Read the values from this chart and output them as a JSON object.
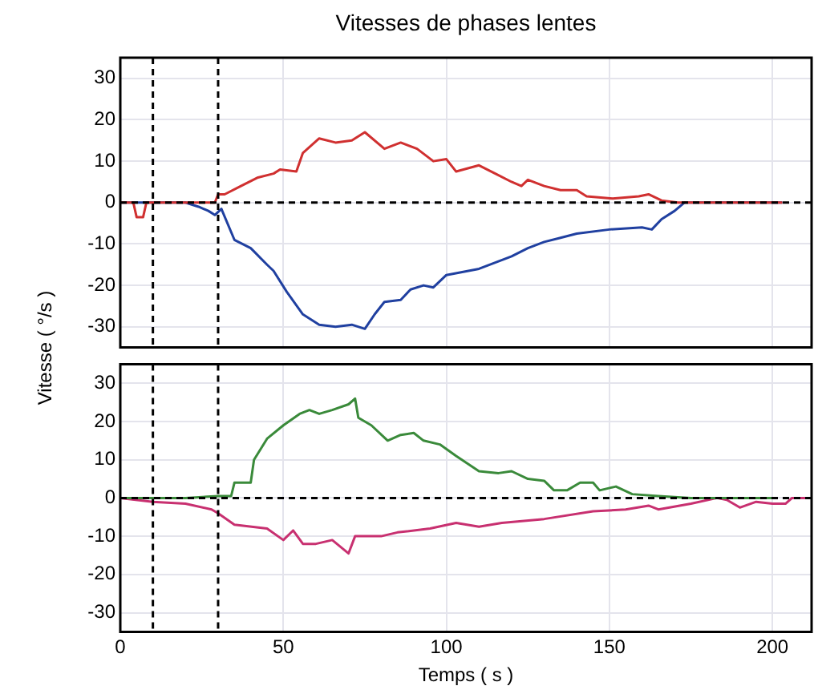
{
  "chart_data": [
    {
      "type": "line",
      "title": "Vitesses de phases lentes",
      "ylabel": "Vitesse ( °/s )",
      "xlim": [
        0,
        212
      ],
      "xticks": [
        0,
        50,
        100,
        150,
        200
      ],
      "ylim": [
        -35,
        35
      ],
      "yticks": [
        30,
        20,
        10,
        0,
        -10,
        -20,
        -30
      ],
      "grid": true,
      "legend": false,
      "marker": "none",
      "line_style": "solid",
      "tick_labels": "y",
      "ref_lines": [
        {
          "axis": "x",
          "value": 10,
          "color": "#000000",
          "line_style": "dashed"
        },
        {
          "axis": "x",
          "value": 30,
          "color": "#000000",
          "line_style": "dashed"
        },
        {
          "axis": "y",
          "value": 0,
          "color": "#000000",
          "line_style": "dashed"
        }
      ],
      "series": [
        {
          "color": "#d03030",
          "x": [
            0,
            4,
            5,
            7,
            8,
            12,
            20,
            29,
            30,
            32,
            37,
            42,
            47,
            49,
            54,
            56,
            61,
            66,
            71,
            75,
            81,
            86,
            91,
            96,
            100,
            103,
            110,
            115,
            120,
            123,
            125,
            130,
            135,
            140,
            143,
            151,
            159,
            162,
            166,
            171,
            180,
            203
          ],
          "values": [
            0,
            0,
            -3.5,
            -3.5,
            0,
            0,
            0,
            0,
            2,
            2,
            4,
            6,
            7,
            8,
            7.5,
            12,
            15.5,
            14.5,
            15,
            17,
            13,
            14.5,
            13,
            10,
            10.5,
            7.5,
            9,
            7,
            5,
            4,
            5.5,
            4,
            3,
            3,
            1.5,
            1,
            1.5,
            2,
            0.5,
            0,
            0,
            0
          ]
        },
        {
          "color": "#2040a0",
          "x": [
            0,
            10,
            20,
            24,
            27,
            29,
            31,
            35,
            40,
            45,
            47,
            51,
            56,
            61,
            66,
            71,
            75,
            78,
            81,
            86,
            89,
            93,
            96,
            100,
            110,
            120,
            125,
            130,
            135,
            140,
            150,
            160,
            163,
            166,
            170,
            173,
            190,
            203
          ],
          "values": [
            0,
            0,
            0,
            -1,
            -2,
            -3,
            -1.5,
            -9,
            -11,
            -15,
            -16.5,
            -21.5,
            -27,
            -29.5,
            -30,
            -29.5,
            -30.5,
            -27,
            -24,
            -23.5,
            -21,
            -20,
            -20.5,
            -17.5,
            -16,
            -13,
            -11,
            -9.5,
            -8.5,
            -7.5,
            -6.5,
            -6,
            -6.5,
            -4,
            -2,
            0,
            0,
            0
          ]
        }
      ]
    },
    {
      "type": "line",
      "xlabel": "Temps ( s )",
      "xlim": [
        0,
        212
      ],
      "xticks": [
        0,
        50,
        100,
        150,
        200
      ],
      "ylim": [
        -35,
        35
      ],
      "yticks": [
        30,
        20,
        10,
        0,
        -10,
        -20,
        -30
      ],
      "grid": true,
      "legend": false,
      "marker": "none",
      "line_style": "solid",
      "ref_lines": [
        {
          "axis": "x",
          "value": 10,
          "color": "#000000",
          "line_style": "dashed"
        },
        {
          "axis": "x",
          "value": 30,
          "color": "#000000",
          "line_style": "dashed"
        },
        {
          "axis": "y",
          "value": 0,
          "color": "#000000",
          "line_style": "dashed"
        }
      ],
      "series": [
        {
          "color": "#3a8a3a",
          "x": [
            0,
            20,
            30,
            34,
            35,
            40,
            41,
            45,
            50,
            55,
            58,
            61,
            65,
            70,
            72,
            73,
            77,
            82,
            86,
            90,
            93,
            98,
            103,
            110,
            116,
            120,
            125,
            130,
            133,
            137,
            141,
            145,
            147,
            152,
            157,
            165,
            175,
            200
          ],
          "values": [
            0,
            0,
            0.5,
            0.5,
            4,
            4,
            10,
            15.5,
            19,
            22,
            23,
            22,
            23,
            24.5,
            26,
            21,
            19,
            15,
            16.5,
            17,
            15,
            14,
            11,
            7,
            6.5,
            7,
            5,
            4.5,
            2,
            2,
            4,
            4,
            2,
            3,
            1,
            0.5,
            0,
            0
          ]
        },
        {
          "color": "#c83070",
          "x": [
            0,
            10,
            20,
            28,
            30,
            35,
            45,
            50,
            53,
            56,
            60,
            65,
            70,
            72,
            80,
            85,
            95,
            103,
            110,
            117,
            130,
            145,
            155,
            162,
            165,
            175,
            183,
            186,
            190,
            195,
            200,
            204,
            206,
            212
          ],
          "values": [
            0,
            -1,
            -1.5,
            -3,
            -4,
            -7,
            -8,
            -11,
            -8.5,
            -12,
            -12,
            -11,
            -14.5,
            -10,
            -10,
            -9,
            -8,
            -6.5,
            -7.5,
            -6.5,
            -5.5,
            -3.5,
            -3,
            -2,
            -3,
            -1.5,
            0,
            -0.5,
            -2.5,
            -1,
            -1.5,
            -1.5,
            0,
            0
          ]
        }
      ]
    }
  ]
}
